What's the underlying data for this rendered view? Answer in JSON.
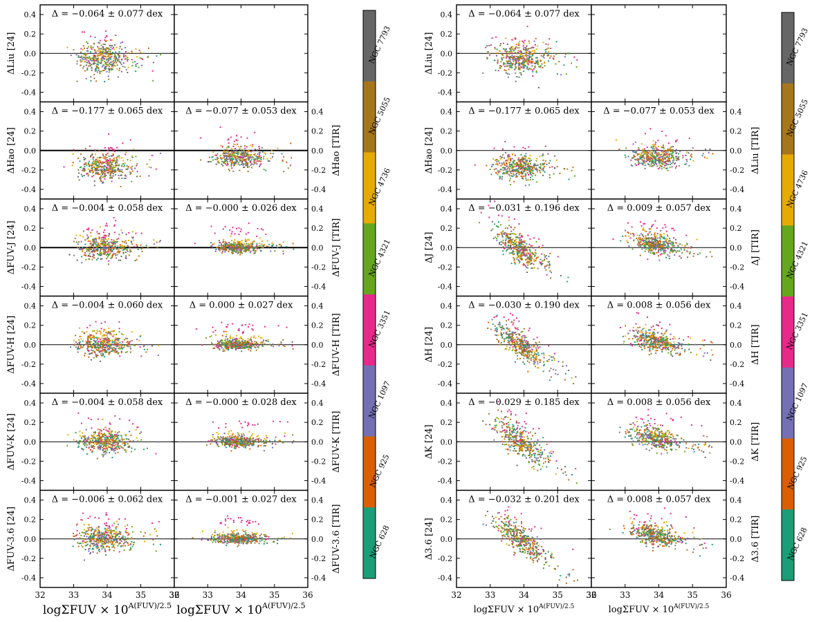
{
  "chart_data": {
    "type": "scatter",
    "y_ticks": [
      "0.4",
      "0.2",
      "0.0",
      "-0.2",
      "-0.4"
    ],
    "ylim": [
      -0.5,
      0.5
    ],
    "x_ticks": [
      "32",
      "33",
      "34",
      "35",
      "36"
    ],
    "xlim": [
      32,
      36
    ],
    "xlabel": "logΣFUV × 10^{A(FUV)/2.5}",
    "xlabel_main": "logΣFUV × 10",
    "xlabel_sup": "A(FUV)/2.5",
    "colorbar_labels": [
      "NGC 7793",
      "NGC 5055",
      "NGC 4736",
      "NGC 4321",
      "NGC 3351",
      "NGC 1097",
      "NGC 925",
      "NGC 628"
    ],
    "colors": {
      "NGC 7793": "#666666",
      "NGC 5055": "#a6761d",
      "NGC 4736": "#e6ab02",
      "NGC 4321": "#66a61e",
      "NGC 3351": "#e7298a",
      "NGC 1097": "#7570b3",
      "NGC 925": "#d95f02",
      "NGC 628": "#1b9e77"
    },
    "figures": [
      {
        "name": "left",
        "rows": [
          {
            "left": {
              "ylabel": "ΔLiu [24]",
              "stat": "Δ = −0.064 ± 0.077 dex",
              "style": "flat",
              "mean": -0.064,
              "std": 0.077
            },
            "right": null
          },
          {
            "left": {
              "ylabel": "ΔHao [24]",
              "stat": "Δ = −0.177 ± 0.065 dex",
              "style": "flat",
              "mean": -0.177,
              "std": 0.065
            },
            "right": {
              "ylabel": "ΔHao [TIR]",
              "stat": "Δ = −0.077 ± 0.053 dex",
              "style": "flat",
              "mean": -0.077,
              "std": 0.053
            }
          },
          {
            "left": {
              "ylabel": "ΔFUV-J [24]",
              "stat": "Δ = −0.004 ± 0.058 dex",
              "style": "flat",
              "mean": -0.004,
              "std": 0.058
            },
            "right": {
              "ylabel": "ΔFUV-J [TIR]",
              "stat": "Δ = −0.000 ± 0.026 dex",
              "style": "flat",
              "mean": 0.0,
              "std": 0.026
            }
          },
          {
            "left": {
              "ylabel": "ΔFUV-H [24]",
              "stat": "Δ = −0.004 ± 0.060 dex",
              "style": "flat",
              "mean": -0.004,
              "std": 0.06
            },
            "right": {
              "ylabel": "ΔFUV-H [TIR]",
              "stat": "Δ = 0.000 ± 0.027 dex",
              "style": "flat",
              "mean": 0.0,
              "std": 0.027
            }
          },
          {
            "left": {
              "ylabel": "ΔFUV-K [24]",
              "stat": "Δ = −0.004 ± 0.058 dex",
              "style": "flat",
              "mean": -0.004,
              "std": 0.058
            },
            "right": {
              "ylabel": "ΔFUV-K [TIR]",
              "stat": "Δ = −0.000 ± 0.028 dex",
              "style": "flat",
              "mean": 0.0,
              "std": 0.028
            }
          },
          {
            "left": {
              "ylabel": "ΔFUV-3.6 [24]",
              "stat": "Δ = −0.006 ± 0.062 dex",
              "style": "flat",
              "mean": -0.006,
              "std": 0.062
            },
            "right": {
              "ylabel": "ΔFUV-3.6 [TIR]",
              "stat": "Δ = −0.001 ± 0.027 dex",
              "style": "flat",
              "mean": -0.001,
              "std": 0.027
            }
          }
        ]
      },
      {
        "name": "right",
        "rows": [
          {
            "left": {
              "ylabel": "ΔLiu [24]",
              "stat": "Δ = −0.064 ± 0.077 dex",
              "style": "flat",
              "mean": -0.064,
              "std": 0.077
            },
            "right": null
          },
          {
            "left": {
              "ylabel": "ΔHao [24]",
              "stat": "Δ = −0.177 ± 0.065 dex",
              "style": "flat",
              "mean": -0.177,
              "std": 0.065
            },
            "right": {
              "ylabel": "ΔLiu [TIR]",
              "stat": "Δ = −0.077 ± 0.053 dex",
              "style": "flat",
              "mean": -0.077,
              "std": 0.053
            }
          },
          {
            "left": {
              "ylabel": "ΔJ [24]",
              "stat": "Δ = −0.031 ± 0.196 dex",
              "style": "slope",
              "mean": -0.031,
              "std": 0.196
            },
            "right": {
              "ylabel": "ΔJ [TIR]",
              "stat": "Δ = 0.009 ± 0.057 dex",
              "style": "tilt",
              "mean": 0.009,
              "std": 0.057
            }
          },
          {
            "left": {
              "ylabel": "ΔH [24]",
              "stat": "Δ = −0.030 ± 0.190 dex",
              "style": "slope",
              "mean": -0.03,
              "std": 0.19
            },
            "right": {
              "ylabel": "ΔH [TIR]",
              "stat": "Δ = 0.008 ± 0.056 dex",
              "style": "tilt",
              "mean": 0.008,
              "std": 0.056
            }
          },
          {
            "left": {
              "ylabel": "ΔK [24]",
              "stat": "Δ = −0.029 ± 0.185 dex",
              "style": "slope",
              "mean": -0.029,
              "std": 0.185
            },
            "right": {
              "ylabel": "ΔK [TIR]",
              "stat": "Δ = 0.008 ± 0.056 dex",
              "style": "tilt",
              "mean": 0.008,
              "std": 0.056
            }
          },
          {
            "left": {
              "ylabel": "Δ3.6 [24]",
              "stat": "Δ = −0.032 ± 0.201 dex",
              "style": "slope",
              "mean": -0.032,
              "std": 0.201
            },
            "right": {
              "ylabel": "Δ3.6 [TIR]",
              "stat": "Δ = 0.008 ± 0.057 dex",
              "style": "tilt",
              "mean": 0.008,
              "std": 0.057
            }
          }
        ]
      }
    ]
  }
}
